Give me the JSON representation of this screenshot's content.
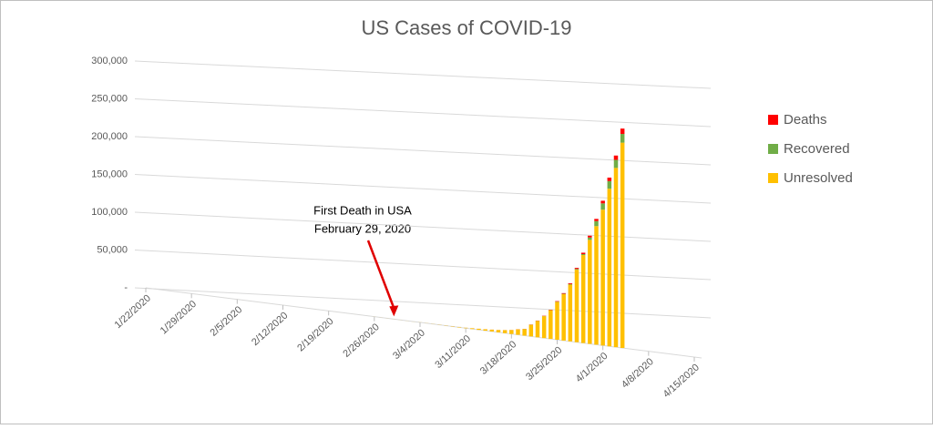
{
  "chart_data": {
    "type": "bar",
    "stacked": true,
    "title": "US Cases of COVID-19",
    "annotation": [
      "First Death in USA",
      "February 29, 2020"
    ],
    "annotation_color": "#e00000",
    "annotation_x": "2/29/2020",
    "x": [
      "1/22/2020",
      "1/23/2020",
      "1/24/2020",
      "1/25/2020",
      "1/26/2020",
      "1/27/2020",
      "1/28/2020",
      "1/29/2020",
      "1/30/2020",
      "1/31/2020",
      "2/1/2020",
      "2/2/2020",
      "2/3/2020",
      "2/4/2020",
      "2/5/2020",
      "2/6/2020",
      "2/7/2020",
      "2/8/2020",
      "2/9/2020",
      "2/10/2020",
      "2/11/2020",
      "2/12/2020",
      "2/13/2020",
      "2/14/2020",
      "2/15/2020",
      "2/16/2020",
      "2/17/2020",
      "2/18/2020",
      "2/19/2020",
      "2/20/2020",
      "2/21/2020",
      "2/22/2020",
      "2/23/2020",
      "2/24/2020",
      "2/25/2020",
      "2/26/2020",
      "2/27/2020",
      "2/28/2020",
      "2/29/2020",
      "3/1/2020",
      "3/2/2020",
      "3/3/2020",
      "3/4/2020",
      "3/5/2020",
      "3/6/2020",
      "3/7/2020",
      "3/8/2020",
      "3/9/2020",
      "3/10/2020",
      "3/11/2020",
      "3/12/2020",
      "3/13/2020",
      "3/14/2020",
      "3/15/2020",
      "3/16/2020",
      "3/17/2020",
      "3/18/2020",
      "3/19/2020",
      "3/20/2020",
      "3/21/2020",
      "3/22/2020",
      "3/23/2020",
      "3/24/2020",
      "3/25/2020",
      "3/26/2020",
      "3/27/2020",
      "3/28/2020",
      "3/29/2020",
      "3/30/2020",
      "3/31/2020",
      "4/1/2020",
      "4/2/2020",
      "4/3/2020",
      "4/4/2020"
    ],
    "xlim": [
      "1/22/2020",
      "4/15/2020"
    ],
    "xticks": [
      "1/22/2020",
      "1/29/2020",
      "2/5/2020",
      "2/12/2020",
      "2/19/2020",
      "2/26/2020",
      "3/4/2020",
      "3/11/2020",
      "3/18/2020",
      "3/25/2020",
      "4/1/2020",
      "4/8/2020",
      "4/15/2020"
    ],
    "ylim": [
      0,
      300000
    ],
    "yticks": [
      {
        "value": 0,
        "label": "-"
      },
      {
        "value": 50000,
        "label": "50,000"
      },
      {
        "value": 100000,
        "label": "100,000"
      },
      {
        "value": 150000,
        "label": "150,000"
      },
      {
        "value": 200000,
        "label": "200,000"
      },
      {
        "value": 250000,
        "label": "250,000"
      },
      {
        "value": 300000,
        "label": "300,000"
      }
    ],
    "grid": true,
    "legend": "right",
    "series": [
      {
        "name": "Unresolved",
        "color": "#ffc000",
        "values": [
          1,
          1,
          1,
          1,
          2,
          2,
          5,
          5,
          5,
          5,
          5,
          7,
          8,
          8,
          11,
          11,
          11,
          11,
          11,
          11,
          11,
          8,
          9,
          9,
          10,
          10,
          10,
          10,
          10,
          10,
          10,
          10,
          12,
          10,
          10,
          46,
          46,
          52,
          52,
          54,
          62,
          66,
          85,
          104,
          131,
          198,
          241,
          378,
          490,
          554,
          924,
          1237,
          1615,
          2120,
          2661,
          3424,
          4535,
          6301,
          7563,
          13359,
          18710,
          25010,
          32671,
          42947,
          52673,
          64155,
          81758,
          99004,
          116774,
          132798,
          151829,
          175825,
          199484,
          227989
        ]
      },
      {
        "name": "Recovered",
        "color": "#70ad47",
        "values": [
          0,
          0,
          0,
          0,
          0,
          0,
          0,
          0,
          0,
          0,
          0,
          0,
          0,
          0,
          0,
          0,
          0,
          0,
          0,
          0,
          0,
          3,
          3,
          3,
          3,
          3,
          3,
          3,
          3,
          3,
          3,
          3,
          3,
          5,
          5,
          5,
          5,
          5,
          5,
          5,
          5,
          7,
          7,
          7,
          7,
          7,
          7,
          7,
          7,
          7,
          7,
          8,
          8,
          12,
          12,
          12,
          12,
          12,
          105,
          121,
          147,
          176,
          178,
          348,
          361,
          681,
          869,
          1072,
          2665,
          5644,
          7024,
          8474,
          9001,
          9707
        ]
      },
      {
        "name": "Deaths",
        "color": "#ff0000",
        "values": [
          0,
          0,
          0,
          0,
          0,
          0,
          0,
          0,
          0,
          0,
          0,
          0,
          0,
          0,
          0,
          0,
          0,
          0,
          0,
          0,
          0,
          0,
          0,
          0,
          0,
          0,
          0,
          0,
          0,
          0,
          0,
          0,
          0,
          0,
          0,
          0,
          0,
          0,
          1,
          1,
          1,
          1,
          6,
          7,
          11,
          12,
          14,
          17,
          21,
          22,
          28,
          36,
          40,
          47,
          54,
          63,
          85,
          108,
          118,
          200,
          244,
          307,
          427,
          552,
          706,
          942,
          1209,
          1581,
          2026,
          2467,
          2978,
          3873,
          4757,
          5926
        ]
      }
    ]
  }
}
